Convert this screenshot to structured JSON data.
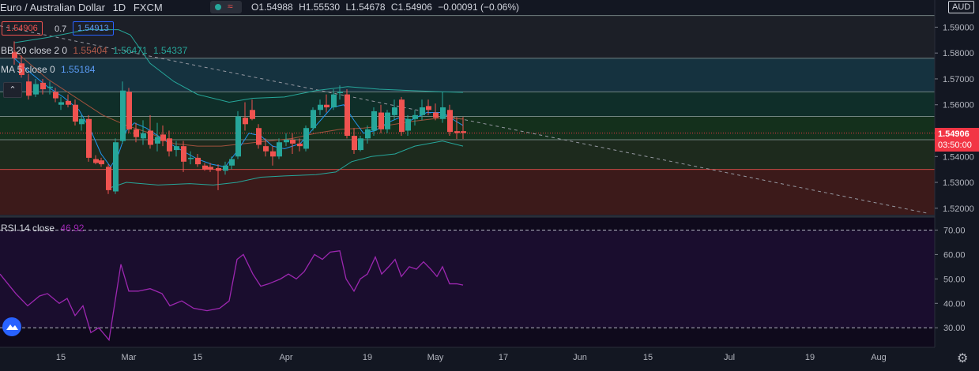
{
  "header": {
    "symbol": "Euro / Australian Dollar",
    "interval": "1D",
    "exchange": "FXCM",
    "ohlc": {
      "open": "O1.54988",
      "high": "H1.55530",
      "low": "L1.54678",
      "close": "C1.54906",
      "change": "−0.00091 (−0.06%)"
    }
  },
  "quote": {
    "sell": "1.54906",
    "spread": "0.7",
    "buy": "1.54913"
  },
  "indicators": {
    "bb": {
      "label": "BB 20 close 2 0",
      "v1": "1.55404",
      "v2": "1.56471",
      "v3": "1.54337"
    },
    "ma": {
      "label": "MA 5 close 0",
      "v": "1.55184"
    },
    "rsi": {
      "label": "RSI 14 close",
      "v": "46.92"
    }
  },
  "axis": {
    "currency": "AUD",
    "price_ticks": [
      "1.59000",
      "1.58000",
      "1.57000",
      "1.56000",
      "1.55000",
      "1.54000",
      "1.53000",
      "1.52000"
    ],
    "current_price": "1.54906",
    "countdown": "03:50:00",
    "rsi_ticks": [
      "70.00",
      "60.00",
      "50.00",
      "40.00",
      "30.00"
    ],
    "x_ticks": [
      "15",
      "Mar",
      "15",
      "Apr",
      "19",
      "May",
      "17",
      "Jun",
      "15",
      "Jul",
      "19",
      "Aug"
    ]
  },
  "colors": {
    "up": "#26a69a",
    "down": "#ef5350",
    "bb": "#26a69a",
    "ma": "#f0a34a",
    "rsi": "#9c27b0",
    "price_label": "#f23645"
  },
  "chart_data": {
    "type": "candlestick",
    "price_range": [
      1.5175,
      1.6005
    ],
    "rsi_range": [
      22,
      75
    ],
    "zones": [
      {
        "from": 1.578,
        "to": 1.5945,
        "color": "#1c1f27"
      },
      {
        "from": 1.565,
        "to": 1.578,
        "color": "#15323f"
      },
      {
        "from": 1.5555,
        "to": 1.565,
        "color": "#0f2e29"
      },
      {
        "from": 1.5465,
        "to": 1.5555,
        "color": "#14301c"
      },
      {
        "from": 1.535,
        "to": 1.5465,
        "color": "#1d2a1d"
      },
      {
        "from": 1.5175,
        "to": 1.535,
        "color": "#3c1a1a"
      }
    ],
    "zone_lines": [
      1.5945,
      1.578,
      1.565,
      1.5555,
      1.5465,
      1.535
    ],
    "trendline": {
      "from": [
        0,
        1.5905
      ],
      "to": [
        1175,
        1.518
      ]
    },
    "candles": [
      {
        "x": 18,
        "o": 1.5803,
        "h": 1.5845,
        "l": 1.5755,
        "c": 1.578
      },
      {
        "x": 27,
        "o": 1.576,
        "h": 1.579,
        "l": 1.5705,
        "c": 1.5715
      },
      {
        "x": 36,
        "o": 1.569,
        "h": 1.572,
        "l": 1.562,
        "c": 1.5635
      },
      {
        "x": 45,
        "o": 1.564,
        "h": 1.57,
        "l": 1.563,
        "c": 1.568
      },
      {
        "x": 54,
        "o": 1.5685,
        "h": 1.57,
        "l": 1.564,
        "c": 1.566
      },
      {
        "x": 63,
        "o": 1.5665,
        "h": 1.569,
        "l": 1.564,
        "c": 1.567
      },
      {
        "x": 70,
        "o": 1.565,
        "h": 1.5665,
        "l": 1.561,
        "c": 1.5625
      },
      {
        "x": 77,
        "o": 1.56,
        "h": 1.563,
        "l": 1.558,
        "c": 1.561
      },
      {
        "x": 86,
        "o": 1.5615,
        "h": 1.564,
        "l": 1.559,
        "c": 1.56
      },
      {
        "x": 95,
        "o": 1.56,
        "h": 1.562,
        "l": 1.552,
        "c": 1.5535
      },
      {
        "x": 103,
        "o": 1.5525,
        "h": 1.556,
        "l": 1.55,
        "c": 1.5545
      },
      {
        "x": 112,
        "o": 1.5545,
        "h": 1.556,
        "l": 1.538,
        "c": 1.5395
      },
      {
        "x": 121,
        "o": 1.539,
        "h": 1.5405,
        "l": 1.537,
        "c": 1.5375
      },
      {
        "x": 128,
        "o": 1.5385,
        "h": 1.5395,
        "l": 1.536,
        "c": 1.537
      },
      {
        "x": 137,
        "o": 1.536,
        "h": 1.537,
        "l": 1.5255,
        "c": 1.527
      },
      {
        "x": 146,
        "o": 1.5265,
        "h": 1.547,
        "l": 1.5255,
        "c": 1.5455
      },
      {
        "x": 155,
        "o": 1.546,
        "h": 1.569,
        "l": 1.545,
        "c": 1.5655
      },
      {
        "x": 163,
        "o": 1.565,
        "h": 1.5665,
        "l": 1.549,
        "c": 1.5505
      },
      {
        "x": 172,
        "o": 1.5505,
        "h": 1.553,
        "l": 1.5455,
        "c": 1.5475
      },
      {
        "x": 181,
        "o": 1.547,
        "h": 1.554,
        "l": 1.5445,
        "c": 1.549
      },
      {
        "x": 190,
        "o": 1.55,
        "h": 1.556,
        "l": 1.543,
        "c": 1.5445
      },
      {
        "x": 199,
        "o": 1.545,
        "h": 1.553,
        "l": 1.542,
        "c": 1.5475
      },
      {
        "x": 206,
        "o": 1.5485,
        "h": 1.552,
        "l": 1.544,
        "c": 1.546
      },
      {
        "x": 214,
        "o": 1.547,
        "h": 1.55,
        "l": 1.54,
        "c": 1.542
      },
      {
        "x": 223,
        "o": 1.5425,
        "h": 1.546,
        "l": 1.54,
        "c": 1.544
      },
      {
        "x": 232,
        "o": 1.544,
        "h": 1.546,
        "l": 1.534,
        "c": 1.538
      },
      {
        "x": 241,
        "o": 1.539,
        "h": 1.542,
        "l": 1.537,
        "c": 1.5395
      },
      {
        "x": 250,
        "o": 1.5395,
        "h": 1.541,
        "l": 1.536,
        "c": 1.537
      },
      {
        "x": 259,
        "o": 1.5365,
        "h": 1.5375,
        "l": 1.5345,
        "c": 1.535
      },
      {
        "x": 266,
        "o": 1.536,
        "h": 1.5375,
        "l": 1.534,
        "c": 1.535
      },
      {
        "x": 276,
        "o": 1.5355,
        "h": 1.537,
        "l": 1.527,
        "c": 1.5345
      },
      {
        "x": 285,
        "o": 1.5345,
        "h": 1.538,
        "l": 1.533,
        "c": 1.5365
      },
      {
        "x": 293,
        "o": 1.5365,
        "h": 1.54,
        "l": 1.535,
        "c": 1.539
      },
      {
        "x": 301,
        "o": 1.54,
        "h": 1.5575,
        "l": 1.539,
        "c": 1.5555
      },
      {
        "x": 310,
        "o": 1.555,
        "h": 1.561,
        "l": 1.55,
        "c": 1.5525
      },
      {
        "x": 319,
        "o": 1.558,
        "h": 1.562,
        "l": 1.554,
        "c": 1.5545
      },
      {
        "x": 327,
        "o": 1.551,
        "h": 1.5525,
        "l": 1.543,
        "c": 1.5445
      },
      {
        "x": 336,
        "o": 1.544,
        "h": 1.547,
        "l": 1.54,
        "c": 1.542
      },
      {
        "x": 345,
        "o": 1.542,
        "h": 1.544,
        "l": 1.5365,
        "c": 1.54
      },
      {
        "x": 353,
        "o": 1.54,
        "h": 1.547,
        "l": 1.539,
        "c": 1.5455
      },
      {
        "x": 362,
        "o": 1.5455,
        "h": 1.549,
        "l": 1.544,
        "c": 1.5465
      },
      {
        "x": 370,
        "o": 1.5465,
        "h": 1.549,
        "l": 1.541,
        "c": 1.545
      },
      {
        "x": 379,
        "o": 1.545,
        "h": 1.547,
        "l": 1.542,
        "c": 1.544
      },
      {
        "x": 387,
        "o": 1.543,
        "h": 1.552,
        "l": 1.542,
        "c": 1.551
      },
      {
        "x": 396,
        "o": 1.551,
        "h": 1.559,
        "l": 1.55,
        "c": 1.558
      },
      {
        "x": 405,
        "o": 1.558,
        "h": 1.562,
        "l": 1.556,
        "c": 1.56
      },
      {
        "x": 413,
        "o": 1.56,
        "h": 1.564,
        "l": 1.557,
        "c": 1.559
      },
      {
        "x": 422,
        "o": 1.559,
        "h": 1.566,
        "l": 1.558,
        "c": 1.564
      },
      {
        "x": 430,
        "o": 1.5645,
        "h": 1.5675,
        "l": 1.562,
        "c": 1.565
      },
      {
        "x": 439,
        "o": 1.564,
        "h": 1.566,
        "l": 1.547,
        "c": 1.548
      },
      {
        "x": 448,
        "o": 1.548,
        "h": 1.551,
        "l": 1.541,
        "c": 1.5425
      },
      {
        "x": 456,
        "o": 1.5425,
        "h": 1.548,
        "l": 1.542,
        "c": 1.547
      },
      {
        "x": 465,
        "o": 1.547,
        "h": 1.552,
        "l": 1.545,
        "c": 1.5505
      },
      {
        "x": 473,
        "o": 1.55,
        "h": 1.559,
        "l": 1.548,
        "c": 1.5575
      },
      {
        "x": 482,
        "o": 1.557,
        "h": 1.56,
        "l": 1.549,
        "c": 1.5505
      },
      {
        "x": 490,
        "o": 1.5505,
        "h": 1.558,
        "l": 1.549,
        "c": 1.557
      },
      {
        "x": 499,
        "o": 1.556,
        "h": 1.562,
        "l": 1.554,
        "c": 1.559
      },
      {
        "x": 508,
        "o": 1.562,
        "h": 1.563,
        "l": 1.548,
        "c": 1.5495
      },
      {
        "x": 516,
        "o": 1.55,
        "h": 1.556,
        "l": 1.548,
        "c": 1.5545
      },
      {
        "x": 525,
        "o": 1.5545,
        "h": 1.558,
        "l": 1.552,
        "c": 1.556
      },
      {
        "x": 534,
        "o": 1.556,
        "h": 1.562,
        "l": 1.554,
        "c": 1.559
      },
      {
        "x": 542,
        "o": 1.5595,
        "h": 1.562,
        "l": 1.556,
        "c": 1.558
      },
      {
        "x": 551,
        "o": 1.557,
        "h": 1.5605,
        "l": 1.554,
        "c": 1.555
      },
      {
        "x": 560,
        "o": 1.5545,
        "h": 1.565,
        "l": 1.553,
        "c": 1.559
      },
      {
        "x": 569,
        "o": 1.558,
        "h": 1.56,
        "l": 1.548,
        "c": 1.5495
      },
      {
        "x": 578,
        "o": 1.5498,
        "h": 1.5553,
        "l": 1.5468,
        "c": 1.5491
      },
      {
        "x": 586,
        "o": 1.5498,
        "h": 1.5553,
        "l": 1.5468,
        "c": 1.5491
      }
    ],
    "bb_upper": [
      [
        18,
        1.584
      ],
      [
        60,
        1.586
      ],
      [
        110,
        1.589
      ],
      [
        150,
        1.589
      ],
      [
        165,
        1.587
      ],
      [
        190,
        1.576
      ],
      [
        220,
        1.569
      ],
      [
        250,
        1.564
      ],
      [
        290,
        1.561
      ],
      [
        320,
        1.5625
      ],
      [
        360,
        1.563
      ],
      [
        400,
        1.5655
      ],
      [
        440,
        1.567
      ],
      [
        480,
        1.566
      ],
      [
        520,
        1.5655
      ],
      [
        560,
        1.565
      ],
      [
        586,
        1.5648
      ]
    ],
    "bb_lower": [
      [
        140,
        1.528
      ],
      [
        160,
        1.53
      ],
      [
        200,
        1.529
      ],
      [
        240,
        1.5295
      ],
      [
        270,
        1.529
      ],
      [
        300,
        1.53
      ],
      [
        330,
        1.532
      ],
      [
        360,
        1.5325
      ],
      [
        400,
        1.533
      ],
      [
        425,
        1.534
      ],
      [
        445,
        1.538
      ],
      [
        470,
        1.54
      ],
      [
        500,
        1.541
      ],
      [
        525,
        1.544
      ],
      [
        560,
        1.546
      ],
      [
        586,
        1.544
      ]
    ],
    "bb_mid": [
      [
        18,
        1.581
      ],
      [
        60,
        1.57
      ],
      [
        100,
        1.562
      ],
      [
        130,
        1.556
      ],
      [
        160,
        1.552
      ],
      [
        190,
        1.549
      ],
      [
        220,
        1.545
      ],
      [
        250,
        1.544
      ],
      [
        280,
        1.544
      ],
      [
        310,
        1.545
      ],
      [
        340,
        1.546
      ],
      [
        370,
        1.547
      ],
      [
        400,
        1.549
      ],
      [
        430,
        1.5505
      ],
      [
        460,
        1.551
      ],
      [
        490,
        1.552
      ],
      [
        520,
        1.5535
      ],
      [
        560,
        1.555
      ],
      [
        586,
        1.5545
      ]
    ],
    "ma": [
      [
        18,
        1.578
      ],
      [
        40,
        1.572
      ],
      [
        60,
        1.567
      ],
      [
        80,
        1.563
      ],
      [
        100,
        1.558
      ],
      [
        115,
        1.55
      ],
      [
        128,
        1.541
      ],
      [
        140,
        1.536
      ],
      [
        150,
        1.541
      ],
      [
        160,
        1.55
      ],
      [
        170,
        1.553
      ],
      [
        185,
        1.551
      ],
      [
        200,
        1.548
      ],
      [
        215,
        1.545
      ],
      [
        232,
        1.542
      ],
      [
        250,
        1.539
      ],
      [
        268,
        1.537
      ],
      [
        285,
        1.536
      ],
      [
        300,
        1.542
      ],
      [
        315,
        1.549
      ],
      [
        330,
        1.548
      ],
      [
        345,
        1.544
      ],
      [
        360,
        1.543
      ],
      [
        380,
        1.545
      ],
      [
        400,
        1.552
      ],
      [
        420,
        1.559
      ],
      [
        435,
        1.56
      ],
      [
        448,
        1.554
      ],
      [
        460,
        1.549
      ],
      [
        475,
        1.55
      ],
      [
        490,
        1.553
      ],
      [
        505,
        1.555
      ],
      [
        520,
        1.554
      ],
      [
        540,
        1.557
      ],
      [
        560,
        1.557
      ],
      [
        575,
        1.554
      ],
      [
        586,
        1.552
      ]
    ],
    "rsi": [
      [
        0,
        52
      ],
      [
        10,
        48
      ],
      [
        20,
        44
      ],
      [
        35,
        39
      ],
      [
        50,
        43
      ],
      [
        60,
        44
      ],
      [
        75,
        40
      ],
      [
        85,
        42
      ],
      [
        95,
        35
      ],
      [
        105,
        39
      ],
      [
        115,
        28
      ],
      [
        125,
        30
      ],
      [
        138,
        25
      ],
      [
        153,
        56
      ],
      [
        163,
        45
      ],
      [
        175,
        45
      ],
      [
        190,
        46
      ],
      [
        205,
        44
      ],
      [
        215,
        39
      ],
      [
        230,
        41
      ],
      [
        245,
        38
      ],
      [
        262,
        37
      ],
      [
        278,
        38
      ],
      [
        290,
        41
      ],
      [
        300,
        58
      ],
      [
        308,
        60
      ],
      [
        320,
        52
      ],
      [
        330,
        47
      ],
      [
        340,
        48
      ],
      [
        355,
        50
      ],
      [
        365,
        52
      ],
      [
        375,
        50
      ],
      [
        385,
        53
      ],
      [
        398,
        60
      ],
      [
        408,
        58
      ],
      [
        418,
        61
      ],
      [
        430,
        61.5
      ],
      [
        438,
        50
      ],
      [
        448,
        45
      ],
      [
        456,
        50
      ],
      [
        465,
        52
      ],
      [
        475,
        59
      ],
      [
        483,
        52
      ],
      [
        492,
        55
      ],
      [
        500,
        58
      ],
      [
        508,
        51
      ],
      [
        518,
        55
      ],
      [
        527,
        54
      ],
      [
        536,
        57
      ],
      [
        545,
        54
      ],
      [
        553,
        51
      ],
      [
        560,
        55
      ],
      [
        569,
        48
      ],
      [
        578,
        48
      ],
      [
        586,
        47.5
      ]
    ],
    "rsi_bands": [
      70,
      30
    ],
    "x_tick_positions": [
      77,
      163,
      250,
      362,
      465,
      551,
      637,
      734,
      820,
      923,
      1025,
      1112
    ]
  }
}
